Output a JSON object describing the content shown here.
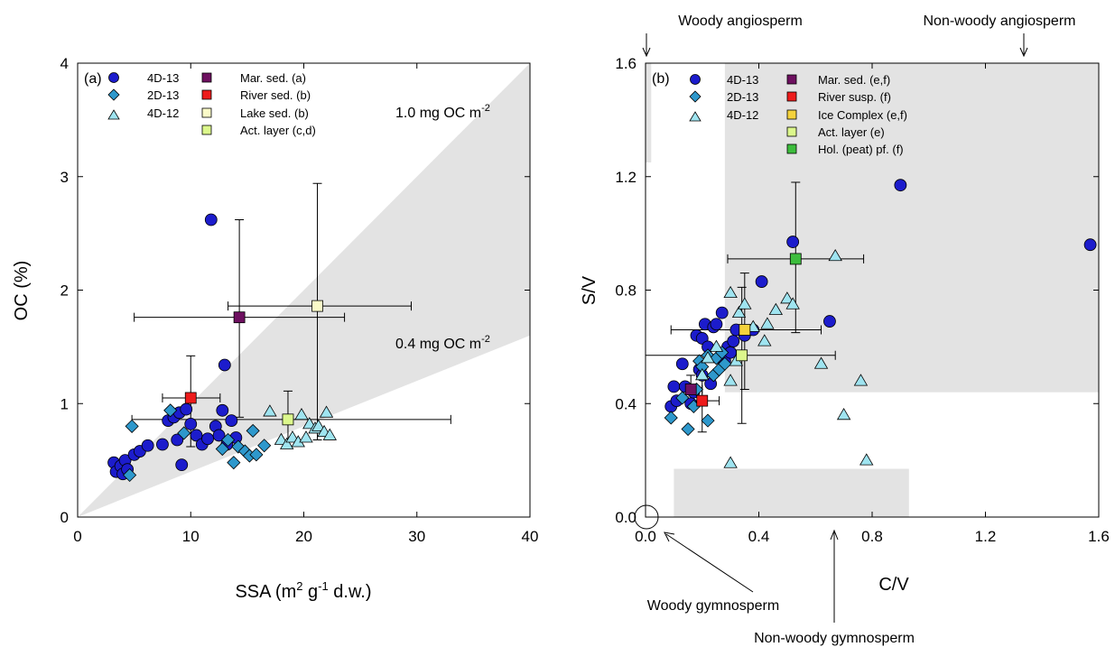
{
  "colors": {
    "c4D13": "#1c1ccc",
    "c2D13": "#2e98cc",
    "c4D12": "#9fe4f0",
    "shade": "#e3e3e3",
    "marSed": "#6e1060",
    "riverRed": "#ee1c1c",
    "lakeSed": "#fafac8",
    "actLayer": "#dcf78c",
    "iceComplex": "#f4d23c",
    "holPeat": "#3dbd3d"
  },
  "chart_data": [
    {
      "type": "scatter",
      "panel_label": "(a)",
      "xlabel": "SSA (m",
      "xlabel_sup": "2",
      "xlabel_mid": " g",
      "xlabel_sup2": "-1",
      "xlabel_end": " d.w.)",
      "ylabel": "OC (%)",
      "xlim": [
        0,
        40
      ],
      "ylim": [
        0,
        4
      ],
      "xticks": [
        0,
        10,
        20,
        30,
        40
      ],
      "yticks": [
        0,
        1,
        2,
        3,
        4
      ],
      "xtick_labels": [
        "0",
        "10",
        "20",
        "30",
        "40"
      ],
      "ytick_labels": [
        "0",
        "1",
        "2",
        "3",
        "4"
      ],
      "loading_band": {
        "lower_slope": 0.04,
        "upper_slope": 0.1
      },
      "annotations": [
        {
          "text": "1.0 mg OC m",
          "sup": "-2"
        },
        {
          "text": "0.4 mg OC m",
          "sup": "-2"
        }
      ],
      "series": [
        {
          "name": "4D-13",
          "marker": "circle",
          "points": [
            [
              3.2,
              0.48
            ],
            [
              3.4,
              0.4
            ],
            [
              3.8,
              0.45
            ],
            [
              4.0,
              0.38
            ],
            [
              4.2,
              0.5
            ],
            [
              4.4,
              0.42
            ],
            [
              5.0,
              0.55
            ],
            [
              5.5,
              0.58
            ],
            [
              6.2,
              0.63
            ],
            [
              7.5,
              0.64
            ],
            [
              8.0,
              0.85
            ],
            [
              8.5,
              0.88
            ],
            [
              8.8,
              0.68
            ],
            [
              9.0,
              0.92
            ],
            [
              9.2,
              0.46
            ],
            [
              9.6,
              0.95
            ],
            [
              10.0,
              0.82
            ],
            [
              10.5,
              0.72
            ],
            [
              11.0,
              0.64
            ],
            [
              11.5,
              0.69
            ],
            [
              11.8,
              2.62
            ],
            [
              12.2,
              0.8
            ],
            [
              12.5,
              0.72
            ],
            [
              12.8,
              0.94
            ],
            [
              13.0,
              1.34
            ],
            [
              13.2,
              0.64
            ],
            [
              13.6,
              0.85
            ],
            [
              14.0,
              0.7
            ]
          ]
        },
        {
          "name": "2D-13",
          "marker": "diamond",
          "points": [
            [
              4.6,
              0.37
            ],
            [
              4.8,
              0.8
            ],
            [
              8.2,
              0.94
            ],
            [
              9.4,
              0.74
            ],
            [
              12.8,
              0.6
            ],
            [
              13.3,
              0.68
            ],
            [
              13.8,
              0.48
            ],
            [
              14.2,
              0.62
            ],
            [
              14.8,
              0.58
            ],
            [
              15.2,
              0.54
            ],
            [
              15.5,
              0.76
            ],
            [
              15.8,
              0.55
            ],
            [
              16.5,
              0.63
            ]
          ]
        },
        {
          "name": "4D-12",
          "marker": "triangle",
          "points": [
            [
              17.0,
              0.93
            ],
            [
              18.0,
              0.68
            ],
            [
              18.5,
              0.64
            ],
            [
              19.0,
              0.7
            ],
            [
              19.5,
              0.66
            ],
            [
              19.8,
              0.9
            ],
            [
              20.2,
              0.7
            ],
            [
              20.5,
              0.82
            ],
            [
              21.0,
              0.78
            ],
            [
              21.3,
              0.8
            ],
            [
              21.8,
              0.75
            ],
            [
              22.0,
              0.92
            ],
            [
              22.3,
              0.72
            ]
          ]
        }
      ],
      "references": [
        {
          "name": "Mar. sed. (a)",
          "color": "#6e1060",
          "x": 14.3,
          "y": 1.76,
          "xerr": [
            5.0,
            23.6
          ],
          "yerr": [
            0.88,
            2.62
          ]
        },
        {
          "name": "River sed. (b)",
          "color": "#ee1c1c",
          "x": 10.0,
          "y": 1.05,
          "xerr": [
            7.5,
            12.6
          ],
          "yerr": [
            0.62,
            1.42
          ]
        },
        {
          "name": "Lake sed. (b)",
          "color": "#fafac8",
          "x": 21.2,
          "y": 1.86,
          "xerr": [
            13.3,
            29.5
          ],
          "yerr": [
            0.68,
            2.94
          ]
        },
        {
          "name": "Act. layer (c,d)",
          "color": "#dcf78c",
          "x": 18.6,
          "y": 0.86,
          "xerr": [
            4.8,
            33.0
          ],
          "yerr": [
            0.62,
            1.11
          ]
        }
      ]
    },
    {
      "type": "scatter",
      "panel_label": "(b)",
      "xlabel": "C/V",
      "ylabel": "S/V",
      "xlim": [
        0,
        1.6
      ],
      "ylim": [
        0,
        1.6
      ],
      "xticks": [
        0,
        0.4,
        0.8,
        1.2,
        1.6
      ],
      "yticks": [
        0,
        0.4,
        0.8,
        1.2,
        1.6
      ],
      "xtick_labels": [
        "0.0",
        "0.4",
        "0.8",
        "1.2",
        "1.6"
      ],
      "ytick_labels": [
        "0.0",
        "0.4",
        "0.8",
        "1.2",
        "1.6"
      ],
      "source_regions": [
        {
          "x": [
            0.0,
            0.02
          ],
          "y": [
            1.25,
            1.6
          ]
        },
        {
          "x": [
            0.28,
            1.6
          ],
          "y": [
            0.44,
            1.6
          ]
        },
        {
          "x": [
            0.1,
            0.93
          ],
          "y": [
            0.0,
            0.17
          ]
        }
      ],
      "annotations": [
        {
          "text": "Woody angiosperm"
        },
        {
          "text": "Non-woody angiosperm"
        },
        {
          "text": "Woody gymnosperm"
        },
        {
          "text": "Non-woody gymnosperm"
        }
      ],
      "series": [
        {
          "name": "4D-13",
          "marker": "circle",
          "points": [
            [
              0.09,
              0.39
            ],
            [
              0.1,
              0.46
            ],
            [
              0.11,
              0.41
            ],
            [
              0.13,
              0.54
            ],
            [
              0.14,
              0.46
            ],
            [
              0.16,
              0.4
            ],
            [
              0.17,
              0.44
            ],
            [
              0.18,
              0.64
            ],
            [
              0.19,
              0.52
            ],
            [
              0.2,
              0.5
            ],
            [
              0.2,
              0.63
            ],
            [
              0.21,
              0.68
            ],
            [
              0.22,
              0.6
            ],
            [
              0.23,
              0.47
            ],
            [
              0.24,
              0.67
            ],
            [
              0.25,
              0.68
            ],
            [
              0.26,
              0.56
            ],
            [
              0.27,
              0.72
            ],
            [
              0.28,
              0.55
            ],
            [
              0.29,
              0.6
            ],
            [
              0.3,
              0.58
            ],
            [
              0.31,
              0.62
            ],
            [
              0.32,
              0.66
            ],
            [
              0.35,
              0.64
            ],
            [
              0.38,
              0.66
            ],
            [
              0.41,
              0.83
            ],
            [
              0.52,
              0.97
            ],
            [
              0.65,
              0.69
            ],
            [
              0.9,
              1.17
            ],
            [
              1.57,
              0.96
            ]
          ]
        },
        {
          "name": "2D-13",
          "marker": "diamond",
          "points": [
            [
              0.09,
              0.35
            ],
            [
              0.13,
              0.42
            ],
            [
              0.15,
              0.31
            ],
            [
              0.17,
              0.39
            ],
            [
              0.18,
              0.45
            ],
            [
              0.19,
              0.55
            ],
            [
              0.2,
              0.53
            ],
            [
              0.22,
              0.34
            ],
            [
              0.22,
              0.57
            ],
            [
              0.24,
              0.5
            ],
            [
              0.25,
              0.56
            ],
            [
              0.26,
              0.52
            ],
            [
              0.27,
              0.58
            ],
            [
              0.28,
              0.54
            ]
          ]
        },
        {
          "name": "4D-12",
          "marker": "triangle",
          "points": [
            [
              0.2,
              0.5
            ],
            [
              0.22,
              0.56
            ],
            [
              0.25,
              0.6
            ],
            [
              0.3,
              0.48
            ],
            [
              0.3,
              0.79
            ],
            [
              0.3,
              0.19
            ],
            [
              0.32,
              0.55
            ],
            [
              0.33,
              0.72
            ],
            [
              0.35,
              0.75
            ],
            [
              0.38,
              0.67
            ],
            [
              0.42,
              0.62
            ],
            [
              0.43,
              0.68
            ],
            [
              0.46,
              0.73
            ],
            [
              0.5,
              0.77
            ],
            [
              0.52,
              0.75
            ],
            [
              0.62,
              0.54
            ],
            [
              0.67,
              0.92
            ],
            [
              0.7,
              0.36
            ],
            [
              0.76,
              0.48
            ],
            [
              0.78,
              0.2
            ]
          ]
        }
      ],
      "references": [
        {
          "name": "Mar. sed. (e,f)",
          "color": "#6e1060",
          "x": 0.16,
          "y": 0.45,
          "xerr": [
            0.13,
            0.2
          ],
          "yerr": [
            0.4,
            0.5
          ]
        },
        {
          "name": "River susp. (f)",
          "color": "#ee1c1c",
          "x": 0.2,
          "y": 0.41,
          "xerr": [
            0.15,
            0.26
          ],
          "yerr": [
            0.3,
            0.52
          ]
        },
        {
          "name": "Ice Complex (e,f)",
          "color": "#f4d23c",
          "x": 0.35,
          "y": 0.66,
          "xerr": [
            0.09,
            0.62
          ],
          "yerr": [
            0.45,
            0.86
          ]
        },
        {
          "name": "Act. layer (e)",
          "color": "#dcf78c",
          "x": 0.34,
          "y": 0.57,
          "xerr": [
            0.0,
            0.67
          ],
          "yerr": [
            0.33,
            0.81
          ]
        },
        {
          "name": "Hol. (peat) pf. (f)",
          "color": "#3dbd3d",
          "x": 0.53,
          "y": 0.91,
          "xerr": [
            0.29,
            0.77
          ],
          "yerr": [
            0.65,
            1.18
          ]
        }
      ]
    }
  ]
}
